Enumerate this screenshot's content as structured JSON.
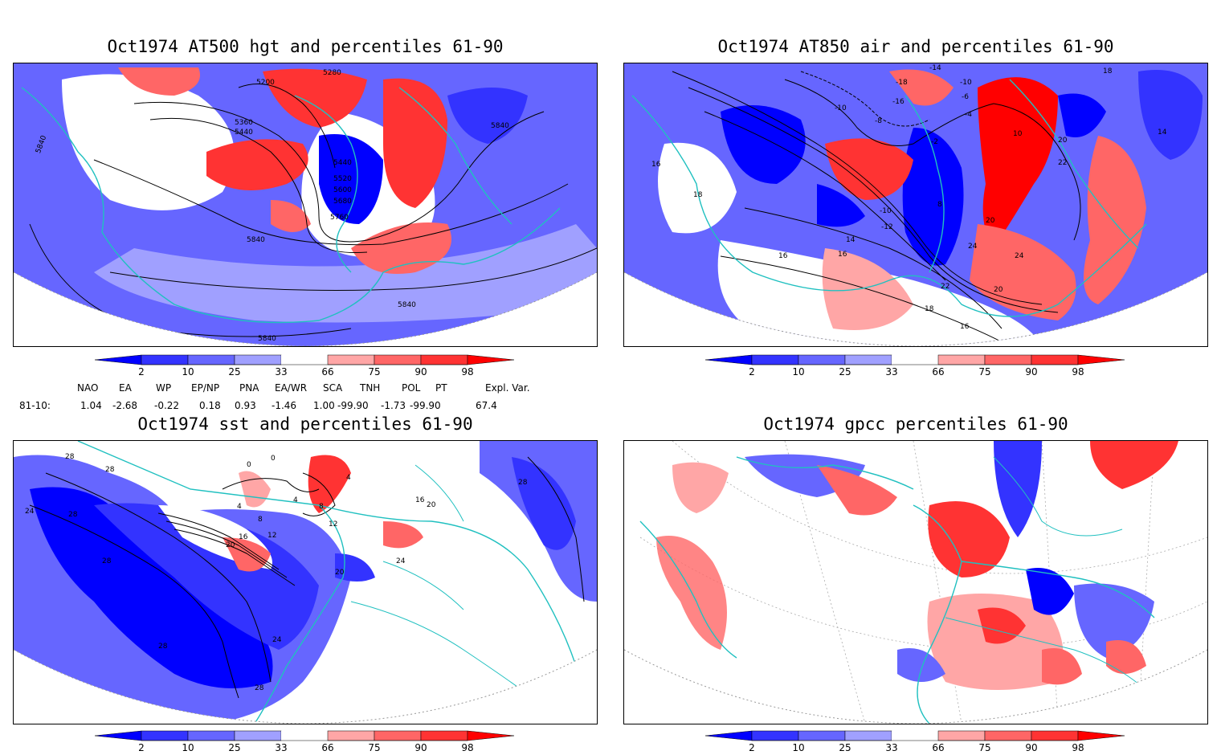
{
  "panels": [
    {
      "id": "hgt",
      "title": "Oct1974 AT500 hgt and percentiles 61-90",
      "contour_labels": [
        "5200",
        "5280",
        "5360",
        "5440",
        "5840",
        "5440",
        "5520",
        "5600",
        "5680",
        "5760",
        "5840",
        "5840",
        "5840",
        "5840"
      ]
    },
    {
      "id": "air",
      "title": "Oct1974 AT850 air and percentiles 61-90",
      "contour_labels": [
        "-14",
        "-18",
        "-16",
        "-10",
        "-6",
        "-8",
        "-4",
        "-10",
        "-2",
        "10",
        "18",
        "20",
        "22",
        "14",
        "16",
        "18",
        "16",
        "-12",
        "14",
        "-10",
        "8",
        "20",
        "24",
        "24",
        "16",
        "22",
        "20",
        "18",
        "16"
      ]
    },
    {
      "id": "sst",
      "title": "Oct1974 sst and percentiles 61-90",
      "contour_labels": [
        "28",
        "28",
        "24",
        "28",
        "28",
        "0",
        "0",
        "4",
        "4",
        "8",
        "4",
        "8",
        "12",
        "16",
        "20",
        "12",
        "16",
        "20",
        "20",
        "24",
        "24",
        "28",
        "28",
        "28"
      ]
    },
    {
      "id": "gpcc",
      "title": "Oct1974 gpcc percentiles 61-90",
      "contour_labels": []
    }
  ],
  "colorbar": {
    "ticks": [
      "2",
      "10",
      "25",
      "33",
      "66",
      "75",
      "90",
      "98"
    ],
    "colors": [
      "#0000ff",
      "#3333ff",
      "#6666ff",
      "#a0a0ff",
      "#ffffff",
      "#ffa6a6",
      "#ff6666",
      "#ff3333",
      "#ff0000"
    ]
  },
  "indices": {
    "headers": [
      "NAO",
      "EA",
      "WP",
      "EP/NP",
      "PNA",
      "EA/WR",
      "SCA",
      "TNH",
      "POL",
      "PT",
      "Expl. Var."
    ],
    "row_label": "81-10:",
    "values": [
      "1.04",
      "-2.68",
      "-0.22",
      "0.18",
      "0.93",
      "-1.46",
      "1.00",
      "-99.90",
      "-1.73",
      "-99.90",
      "67.4"
    ]
  },
  "map_colors": {
    "land_outline": "#20c0c0",
    "contour": "#000000",
    "grid": "#999999"
  }
}
